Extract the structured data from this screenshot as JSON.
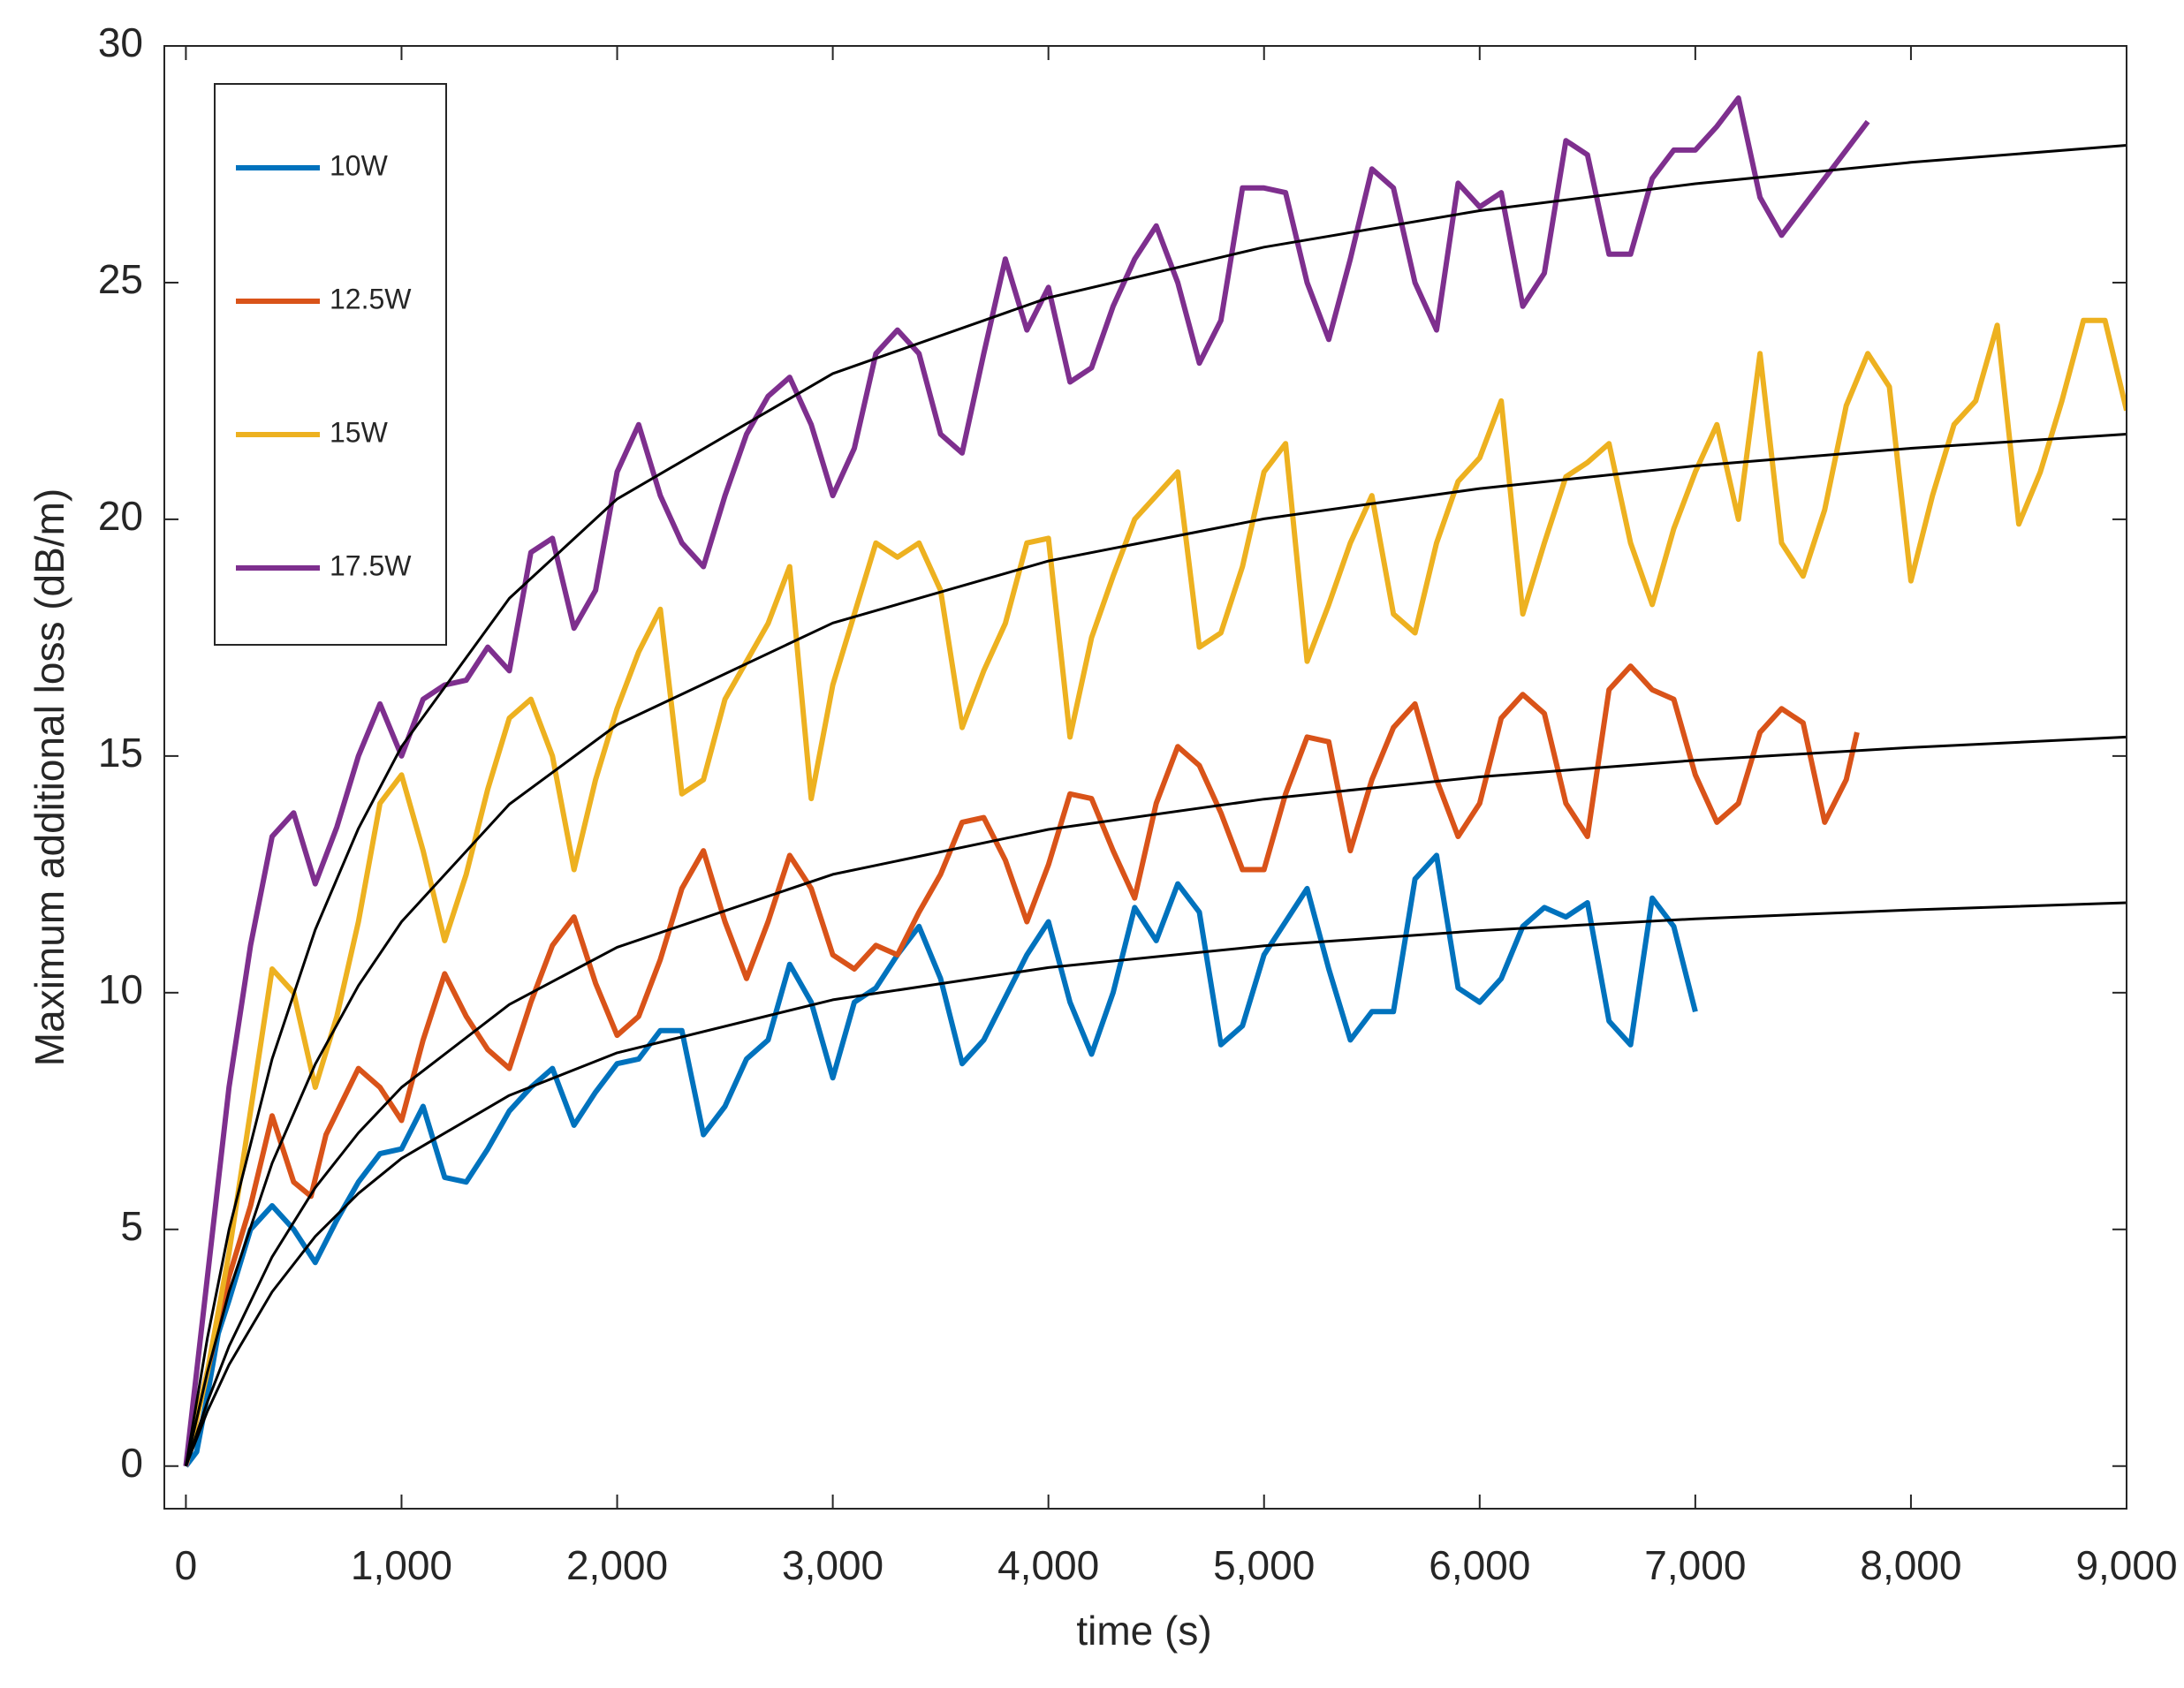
{
  "chart_data": {
    "type": "line",
    "xlabel": "time (s)",
    "ylabel": "Maximum additional loss (dB/m)",
    "xlim": [
      -100,
      9000
    ],
    "ylim": [
      -0.9,
      30
    ],
    "xticks": [
      0,
      {
        "value": 1000,
        "label": "1,000"
      },
      {
        "value": 2000,
        "label": "2,000"
      },
      {
        "value": 3000,
        "label": "3,000"
      },
      {
        "value": 4000,
        "label": "4,000"
      },
      {
        "value": 5000,
        "label": "5,000"
      },
      {
        "value": 6000,
        "label": "6,000"
      },
      {
        "value": 7000,
        "label": "7,000"
      },
      {
        "value": 8000,
        "label": "8,000"
      },
      {
        "value": 9000,
        "label": "9,000"
      }
    ],
    "yticks": [
      0,
      5,
      10,
      15,
      20,
      25,
      30
    ],
    "legend": "upper left",
    "series": [
      {
        "name": "10W",
        "color": "#0072BD",
        "x": [
          0,
          50,
          100,
          150,
          200,
          300,
          400,
          500,
          600,
          700,
          800,
          900,
          1000,
          1100,
          1200,
          1300,
          1400,
          1500,
          1600,
          1700,
          1800,
          1900,
          2000,
          2100,
          2200,
          2300,
          2400,
          2500,
          2600,
          2700,
          2800,
          2900,
          3000,
          3100,
          3200,
          3300,
          3400,
          3500,
          3600,
          3700,
          3800,
          3900,
          4000,
          4100,
          4200,
          4300,
          4400,
          4500,
          4600,
          4700,
          4800,
          4900,
          5000,
          5100,
          5200,
          5300,
          5400,
          5500,
          5600,
          5700,
          5800,
          5900,
          6000,
          6100,
          6200,
          6300,
          6400,
          6500,
          6600,
          6700,
          6800,
          6900,
          7000
        ],
        "values": [
          0,
          0.3,
          1.5,
          2.8,
          3.5,
          5.0,
          5.5,
          5.0,
          4.3,
          5.2,
          6.0,
          6.6,
          6.7,
          7.6,
          6.1,
          6.0,
          6.7,
          7.5,
          8.0,
          8.4,
          7.2,
          7.9,
          8.5,
          8.6,
          9.2,
          9.2,
          7.0,
          7.6,
          8.6,
          9.0,
          10.6,
          9.8,
          8.2,
          9.8,
          10.1,
          10.8,
          11.4,
          10.3,
          8.5,
          9.0,
          9.9,
          10.8,
          11.5,
          9.8,
          8.7,
          10.0,
          11.8,
          11.1,
          12.3,
          11.7,
          8.9,
          9.3,
          10.8,
          11.5,
          12.2,
          10.5,
          9.0,
          9.6,
          9.6,
          12.4,
          12.9,
          10.1,
          9.8,
          10.3,
          11.4,
          11.8,
          11.6,
          11.9,
          9.4,
          8.9,
          12.0,
          11.4,
          9.6
        ]
      },
      {
        "name": "12.5W",
        "color": "#D95319",
        "x": [
          0,
          100,
          200,
          300,
          400,
          500,
          580,
          650,
          800,
          900,
          1000,
          1100,
          1200,
          1300,
          1400,
          1500,
          1600,
          1700,
          1800,
          1900,
          2000,
          2100,
          2200,
          2300,
          2400,
          2500,
          2600,
          2700,
          2800,
          2900,
          3000,
          3100,
          3200,
          3300,
          3400,
          3500,
          3600,
          3700,
          3800,
          3900,
          4000,
          4100,
          4200,
          4300,
          4400,
          4500,
          4600,
          4700,
          4800,
          4900,
          5000,
          5100,
          5200,
          5300,
          5400,
          5500,
          5600,
          5700,
          5800,
          5900,
          6000,
          6100,
          6200,
          6300,
          6400,
          6500,
          6600,
          6700,
          6800,
          6900,
          7000,
          7100,
          7200,
          7300,
          7400,
          7500,
          7600,
          7700,
          7750
        ],
        "values": [
          0,
          2.0,
          4.0,
          5.5,
          7.4,
          6.0,
          5.7,
          7.0,
          8.4,
          8.0,
          7.3,
          9.0,
          10.4,
          9.5,
          8.8,
          8.4,
          9.8,
          11.0,
          11.6,
          10.2,
          9.1,
          9.5,
          10.7,
          12.2,
          13.0,
          11.5,
          10.3,
          11.5,
          12.9,
          12.2,
          10.8,
          10.5,
          11.0,
          10.8,
          11.7,
          12.5,
          13.6,
          13.7,
          12.8,
          11.5,
          12.7,
          14.2,
          14.1,
          13.0,
          12.0,
          14.0,
          15.2,
          14.8,
          13.8,
          12.6,
          12.6,
          14.2,
          15.4,
          15.3,
          13.0,
          14.5,
          15.6,
          16.1,
          14.5,
          13.3,
          14.0,
          15.8,
          16.3,
          15.9,
          14.0,
          13.3,
          16.4,
          16.9,
          16.4,
          16.2,
          14.6,
          13.6,
          14.0,
          15.5,
          16.0,
          15.7,
          13.6,
          14.5,
          15.5
        ]
      },
      {
        "name": "15W",
        "color": "#EDB120",
        "x": [
          0,
          100,
          200,
          300,
          400,
          500,
          600,
          700,
          800,
          900,
          1000,
          1100,
          1200,
          1300,
          1400,
          1500,
          1600,
          1700,
          1800,
          1900,
          2000,
          2100,
          2200,
          2300,
          2400,
          2500,
          2600,
          2700,
          2800,
          2900,
          3000,
          3100,
          3200,
          3300,
          3400,
          3500,
          3600,
          3700,
          3800,
          3900,
          4000,
          4100,
          4200,
          4300,
          4400,
          4500,
          4600,
          4700,
          4800,
          4900,
          5000,
          5100,
          5200,
          5300,
          5400,
          5500,
          5600,
          5700,
          5800,
          5900,
          6000,
          6100,
          6200,
          6300,
          6400,
          6500,
          6600,
          6700,
          6800,
          6900,
          7000,
          7100,
          7200,
          7300,
          7400,
          7500,
          7600,
          7700,
          7800,
          7900,
          8000,
          8100,
          8200,
          8300,
          8400,
          8500,
          8600,
          8700,
          8800,
          8900,
          9000
        ],
        "values": [
          0,
          2.0,
          4.5,
          7.5,
          10.5,
          10.0,
          8.0,
          9.5,
          11.5,
          14.0,
          14.6,
          13.0,
          11.1,
          12.5,
          14.3,
          15.8,
          16.2,
          15.0,
          12.6,
          14.5,
          16.0,
          17.2,
          18.1,
          14.2,
          14.5,
          16.2,
          17.0,
          17.8,
          19.0,
          14.1,
          16.5,
          18.0,
          19.5,
          19.2,
          19.5,
          18.5,
          15.6,
          16.8,
          17.8,
          19.5,
          19.6,
          15.4,
          17.5,
          18.8,
          20.0,
          20.5,
          21.0,
          17.3,
          17.6,
          19.0,
          21.0,
          21.6,
          17.0,
          18.2,
          19.5,
          20.5,
          18.0,
          17.6,
          19.5,
          20.8,
          21.3,
          22.5,
          18.0,
          19.5,
          20.9,
          21.2,
          21.6,
          19.5,
          18.2,
          19.8,
          21.0,
          22.0,
          20.0,
          23.5,
          19.5,
          18.8,
          20.2,
          22.4,
          23.5,
          22.8,
          18.7,
          20.5,
          22.0,
          22.5,
          24.1,
          19.9,
          21.0,
          22.5,
          24.2,
          24.2,
          22.3
        ]
      },
      {
        "name": "17.5W",
        "color": "#7E2F8E",
        "x": [
          0,
          100,
          200,
          300,
          400,
          500,
          600,
          700,
          800,
          900,
          1000,
          1100,
          1200,
          1300,
          1400,
          1500,
          1600,
          1700,
          1800,
          1900,
          2000,
          2100,
          2200,
          2300,
          2400,
          2500,
          2600,
          2700,
          2800,
          2900,
          3000,
          3100,
          3200,
          3300,
          3400,
          3500,
          3600,
          3700,
          3800,
          3900,
          4000,
          4100,
          4200,
          4300,
          4400,
          4500,
          4600,
          4700,
          4800,
          4900,
          5000,
          5100,
          5200,
          5300,
          5400,
          5500,
          5600,
          5700,
          5800,
          5900,
          6000,
          6100,
          6200,
          6300,
          6400,
          6500,
          6600,
          6700,
          6800,
          6900,
          7000,
          7100,
          7200,
          7300,
          7400,
          7500,
          7600,
          7700,
          7800
        ],
        "values": [
          0,
          4.0,
          8.0,
          11.0,
          13.3,
          13.8,
          12.3,
          13.5,
          15.0,
          16.1,
          15.0,
          16.2,
          16.5,
          16.6,
          17.3,
          16.8,
          19.3,
          19.6,
          17.7,
          18.5,
          21.0,
          22.0,
          20.5,
          19.5,
          19.0,
          20.5,
          21.8,
          22.6,
          23.0,
          22.0,
          20.5,
          21.5,
          23.5,
          24.0,
          23.5,
          21.8,
          21.4,
          23.5,
          25.5,
          24.0,
          24.9,
          22.9,
          23.2,
          24.5,
          25.5,
          26.2,
          25.0,
          23.3,
          24.2,
          27.0,
          27.0,
          26.9,
          25.0,
          23.8,
          25.5,
          27.4,
          27.0,
          25.0,
          24.0,
          27.1,
          26.6,
          26.9,
          24.5,
          25.2,
          28.0,
          27.7,
          25.6,
          25.6,
          27.2,
          27.8,
          27.8,
          28.3,
          28.9,
          26.8,
          26.0,
          26.6,
          27.2,
          27.8,
          28.4
        ]
      }
    ],
    "fits": [
      {
        "color": "#000000",
        "x": [
          0,
          100,
          200,
          400,
          600,
          800,
          1000,
          1500,
          2000,
          3000,
          4000,
          5000,
          6000,
          7000,
          8000,
          9000
        ],
        "values": [
          0,
          1.16,
          2.14,
          3.68,
          4.85,
          5.76,
          6.5,
          7.83,
          8.73,
          9.85,
          10.53,
          10.99,
          11.31,
          11.56,
          11.75,
          11.9
        ]
      },
      {
        "color": "#000000",
        "x": [
          0,
          100,
          200,
          400,
          600,
          800,
          1000,
          1500,
          2000,
          3000,
          4000,
          5000,
          6000,
          7000,
          8000,
          9000
        ],
        "values": [
          0,
          1.36,
          2.53,
          4.42,
          5.88,
          7.04,
          8.0,
          9.75,
          10.96,
          12.5,
          13.45,
          14.09,
          14.56,
          14.91,
          15.18,
          15.4
        ]
      },
      {
        "color": "#000000",
        "x": [
          0,
          100,
          200,
          400,
          600,
          800,
          1000,
          1500,
          2000,
          3000,
          4000,
          5000,
          6000,
          7000,
          8000,
          9000
        ],
        "values": [
          0,
          1.99,
          3.68,
          6.4,
          8.49,
          10.15,
          11.5,
          13.98,
          15.66,
          17.81,
          19.12,
          20.01,
          20.65,
          21.13,
          21.5,
          21.8
        ]
      },
      {
        "color": "#000000",
        "x": [
          0,
          100,
          200,
          400,
          600,
          800,
          1000,
          1500,
          2000,
          3000,
          4000,
          5000,
          6000,
          7000,
          8000,
          9000
        ],
        "values": [
          0,
          2.71,
          4.99,
          8.6,
          11.33,
          13.47,
          15.2,
          18.33,
          20.43,
          23.08,
          24.68,
          25.75,
          26.52,
          27.09,
          27.54,
          27.9
        ]
      }
    ]
  }
}
